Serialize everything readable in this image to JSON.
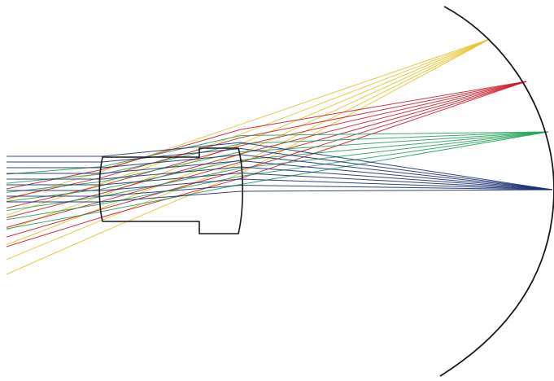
{
  "diagram": {
    "lens_system": {
      "outline_color": "#1a1a1a"
    },
    "image_surface": {
      "shape": "curved",
      "color": "#1a1a1a"
    },
    "ray_bundles": [
      {
        "name": "yellow",
        "color": "#e6c42c",
        "rays": 6
      },
      {
        "name": "red",
        "color": "#cc1f2e",
        "rays": 7
      },
      {
        "name": "green",
        "color": "#27a35a",
        "rays": 7
      },
      {
        "name": "blue",
        "color": "#1b2f73",
        "rays": 9
      }
    ]
  }
}
